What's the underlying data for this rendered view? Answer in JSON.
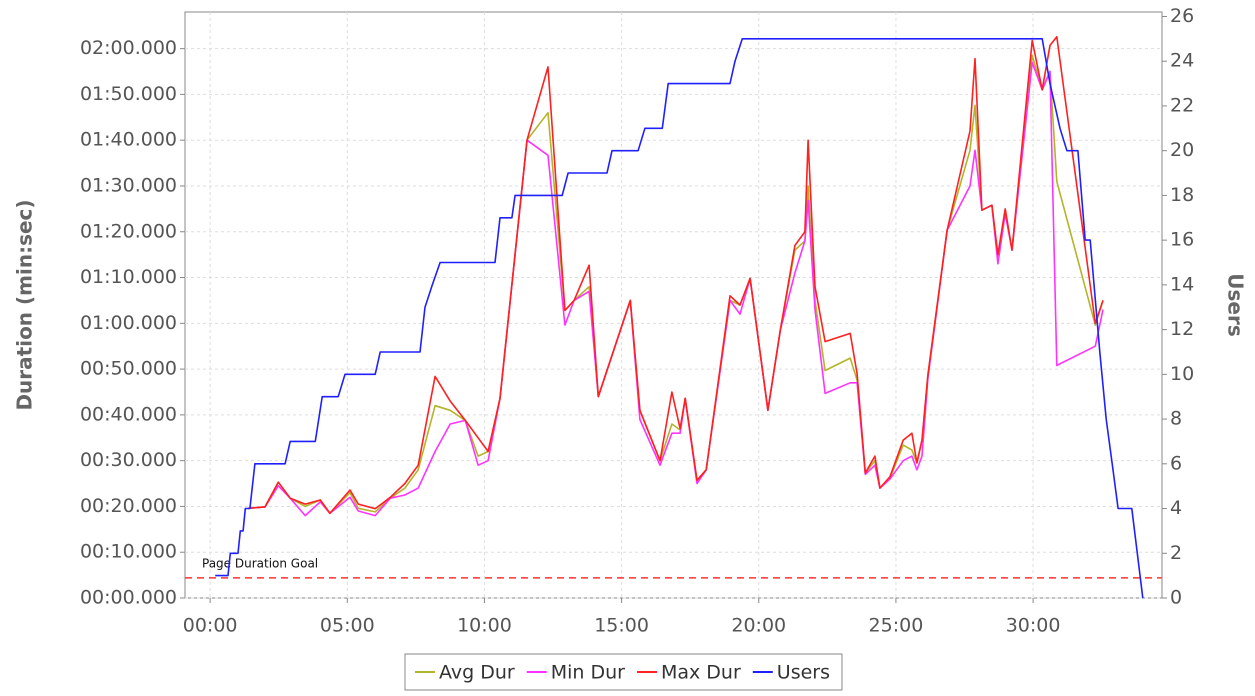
{
  "chart_data": {
    "type": "line",
    "ylabel": "Duration (min:sec)",
    "y2label": "Users",
    "xlim": [
      -55,
      2082
    ],
    "ylim": [
      0,
      128
    ],
    "y2lim": [
      0,
      26.2
    ],
    "xticks": [
      {
        "value": 0,
        "label": "00:00"
      },
      {
        "value": 300,
        "label": "05:00"
      },
      {
        "value": 600,
        "label": "10:00"
      },
      {
        "value": 900,
        "label": "15:00"
      },
      {
        "value": 1200,
        "label": "20:00"
      },
      {
        "value": 1500,
        "label": "25:00"
      },
      {
        "value": 1800,
        "label": "30:00"
      }
    ],
    "yticks": [
      {
        "value": 0,
        "label": "00:00.000"
      },
      {
        "value": 10,
        "label": "00:10.000"
      },
      {
        "value": 20,
        "label": "00:20.000"
      },
      {
        "value": 30,
        "label": "00:30.000"
      },
      {
        "value": 40,
        "label": "00:40.000"
      },
      {
        "value": 50,
        "label": "00:50.000"
      },
      {
        "value": 60,
        "label": "01:00.000"
      },
      {
        "value": 70,
        "label": "01:10.000"
      },
      {
        "value": 80,
        "label": "01:20.000"
      },
      {
        "value": 90,
        "label": "01:30.000"
      },
      {
        "value": 100,
        "label": "01:40.000"
      },
      {
        "value": 110,
        "label": "01:50.000"
      },
      {
        "value": 120,
        "label": "02:00.000"
      }
    ],
    "y2ticks": [
      0,
      2,
      4,
      6,
      8,
      10,
      12,
      14,
      16,
      18,
      20,
      22,
      24,
      26
    ],
    "grid": true,
    "goal_line": {
      "label": "Page Duration Goal",
      "value": 4.4,
      "color": "#ff3333"
    },
    "x": [
      83,
      120,
      149,
      175,
      208,
      241,
      262,
      306,
      324,
      361,
      394,
      426,
      455,
      492,
      525,
      558,
      586,
      608,
      634,
      693,
      739,
      776,
      796,
      829,
      849,
      919,
      940,
      984,
      1010,
      1028,
      1039,
      1065,
      1085,
      1137,
      1159,
      1181,
      1220,
      1247,
      1279,
      1301,
      1308,
      1323,
      1345,
      1400,
      1415,
      1433,
      1454,
      1465,
      1487,
      1516,
      1535,
      1546,
      1557,
      1570,
      1612,
      1662,
      1673,
      1688,
      1710,
      1723,
      1739,
      1754,
      1798,
      1820,
      1837,
      1852,
      1936,
      1953
    ],
    "series": [
      {
        "name": "Avg Dur",
        "color": "#b4b42a",
        "values": [
          19.6,
          19.9,
          25.3,
          21.8,
          20,
          21.4,
          18.5,
          23,
          19.6,
          18.8,
          21.8,
          24,
          28,
          42,
          41,
          38.8,
          31,
          32,
          43.6,
          100,
          106,
          62.8,
          65,
          68,
          44,
          65,
          41,
          30,
          38,
          36.7,
          43.6,
          25.7,
          28,
          65,
          64,
          69.8,
          41,
          58.5,
          76,
          78,
          90,
          65,
          49.7,
          52.4,
          47.6,
          27.3,
          30,
          24,
          26.2,
          33.4,
          32.3,
          29.5,
          34.5,
          48.7,
          80.3,
          97.8,
          107.6,
          84.7,
          85.8,
          73.8,
          84.7,
          76,
          118.5,
          111,
          115,
          91,
          59.6,
          65
        ]
      },
      {
        "name": "Min Dur",
        "color": "#ff33ff",
        "values": [
          19.6,
          19.9,
          24.5,
          21.8,
          18,
          21,
          18.5,
          22,
          19,
          18,
          21.8,
          22.5,
          24,
          32,
          38,
          38.8,
          29,
          30,
          43.6,
          100,
          96.7,
          59.6,
          65,
          67,
          44,
          65,
          39,
          29,
          36,
          36,
          43.6,
          25,
          28,
          65,
          62,
          69.8,
          41,
          58.5,
          71,
          78,
          86.8,
          63,
          44.7,
          47,
          47,
          27,
          29,
          24,
          26,
          30,
          31,
          28,
          31,
          48,
          80.3,
          90,
          97.8,
          84.7,
          85.8,
          73,
          84,
          76,
          117,
          111,
          115,
          50.8,
          55,
          63
        ]
      },
      {
        "name": "Max Dur",
        "color": "#ff2020",
        "values": [
          19.6,
          19.9,
          25.3,
          21.8,
          20.5,
          21.4,
          18.5,
          23.6,
          20.5,
          19.5,
          22,
          25,
          29,
          48.4,
          43,
          38.8,
          35,
          32,
          43.6,
          100,
          116,
          62.8,
          65,
          72.7,
          44,
          65,
          41,
          30,
          45,
          37,
          43.6,
          25.7,
          28,
          66,
          64,
          69.8,
          41,
          58.5,
          77,
          80,
          100,
          68,
          56,
          57.8,
          49,
          27.3,
          31,
          24,
          26.5,
          34.5,
          36,
          29.5,
          34.5,
          48.7,
          80.3,
          102,
          117.8,
          84.7,
          85.8,
          75,
          85,
          76,
          121.8,
          111,
          120.7,
          122.6,
          60,
          65
        ]
      },
      {
        "name": "Users",
        "color": "#2020ff",
        "axis": "y2",
        "x": [
          11,
          39,
          44,
          61,
          66,
          72,
          77,
          87,
          98,
          127,
          131,
          164,
          175,
          230,
          245,
          280,
          295,
          361,
          372,
          459,
          470,
          486,
          503,
          623,
          634,
          660,
          667,
          770,
          783,
          868,
          879,
          936,
          951,
          989,
          1002,
          1137,
          1148,
          1164,
          1820,
          1837,
          1859,
          1874,
          1898,
          1914,
          1925,
          1946,
          1960,
          1973,
          1986,
          2016,
          2040
        ],
        "values": [
          1,
          1,
          2,
          2,
          3,
          3,
          4,
          4,
          6,
          6,
          6,
          6,
          7,
          7,
          9,
          9,
          10,
          10,
          11,
          11,
          13,
          14,
          15,
          15,
          17,
          17,
          18,
          18,
          19,
          19,
          20,
          20,
          21,
          21,
          23,
          23,
          24,
          25,
          25,
          23,
          21,
          20,
          20,
          16,
          16,
          11,
          8,
          6,
          4,
          4,
          0
        ]
      }
    ]
  }
}
